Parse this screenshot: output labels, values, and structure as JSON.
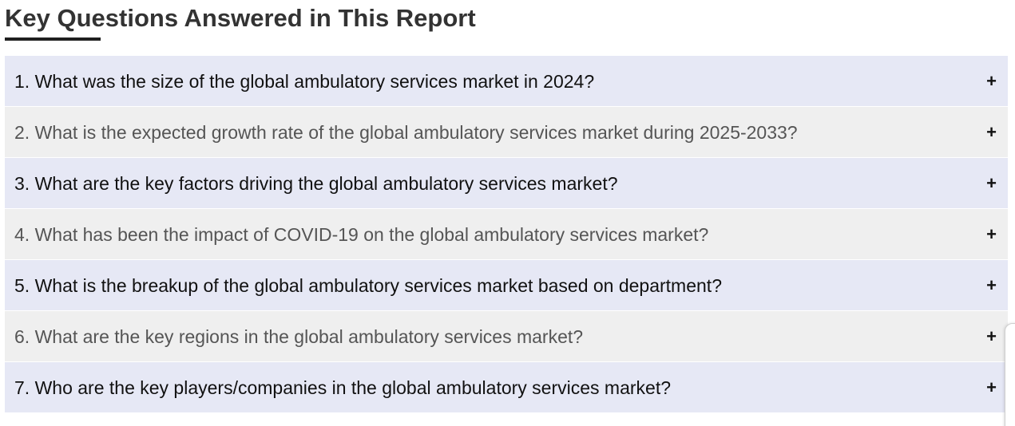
{
  "heading": {
    "title": "Key Questions Answered in This Report"
  },
  "faq": {
    "items": [
      {
        "question": "1. What was the size of the global ambulatory services market in 2024?",
        "toggle": "+"
      },
      {
        "question": "2. What is the expected growth rate of the global ambulatory services market during 2025-2033?",
        "toggle": "+"
      },
      {
        "question": "3. What are the key factors driving the global ambulatory services market?",
        "toggle": "+"
      },
      {
        "question": "4. What has been the impact of COVID-19 on the global ambulatory services market?",
        "toggle": "+"
      },
      {
        "question": "5. What is the breakup of the global ambulatory services market based on department?",
        "toggle": "+"
      },
      {
        "question": "6. What are the key regions in the global ambulatory services market?",
        "toggle": "+"
      },
      {
        "question": "7. Who are the key players/companies in the global ambulatory services market?",
        "toggle": "+"
      }
    ]
  },
  "colors": {
    "row_odd": "#e6e8f5",
    "row_even": "#efefef",
    "title_text": "#333333"
  },
  "icons": {
    "toggle": "plus-icon"
  }
}
